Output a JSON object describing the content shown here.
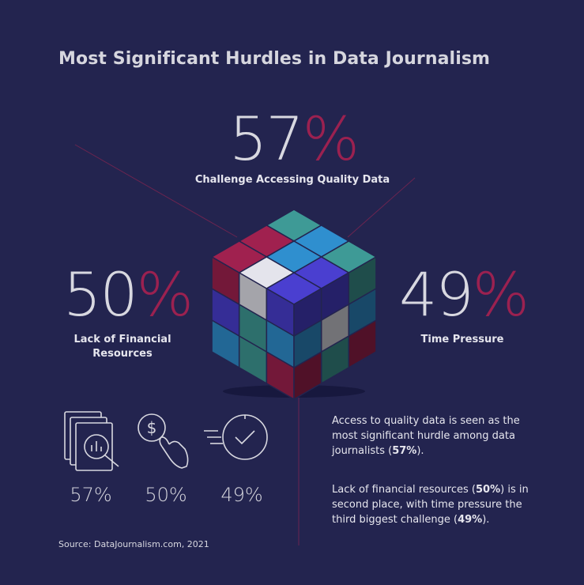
{
  "title": "Most Significant Hurdles in Data Journalism",
  "colors": {
    "background": "#23244f",
    "accent": "#9b2150",
    "text": "#d8d8e0",
    "cube_teal": "#3e9a96",
    "cube_blue": "#2f8fcf",
    "cube_purple": "#4a3fd0",
    "cube_magenta": "#a0214f",
    "cube_white": "#e4e4ec"
  },
  "chart_data": {
    "type": "bar",
    "categories": [
      "Challenge Accessing Quality Data",
      "Lack of Financial Resources",
      "Time Pressure"
    ],
    "values": [
      57,
      50,
      49
    ],
    "unit": "%"
  },
  "stats": [
    {
      "number": "57",
      "pct": "%",
      "label_lines": [
        "Challenge Accessing Quality Data"
      ]
    },
    {
      "number": "50",
      "pct": "%",
      "label_lines": [
        "Lack of Financial",
        "Resources"
      ]
    },
    {
      "number": "49",
      "pct": "%",
      "label_lines": [
        "Time Pressure"
      ]
    }
  ],
  "icons": [
    {
      "icon": "document-search-icon",
      "value": "57%"
    },
    {
      "icon": "money-hand-icon",
      "value": "50%"
    },
    {
      "icon": "clock-speed-icon",
      "value": "49%"
    }
  ],
  "paragraphs": {
    "p1": {
      "pre": "Access to quality data is seen as the most significant hurdle among data journalists (",
      "bold": "57%",
      "post": ")."
    },
    "p2": {
      "pre1": "Lack of financial resources (",
      "bold1": "50%",
      "mid": ") is in second place, with time pressure the third biggest challenge (",
      "bold2": "49%",
      "post": ")."
    }
  },
  "source": "Source: DataJournalism.com, 2021"
}
